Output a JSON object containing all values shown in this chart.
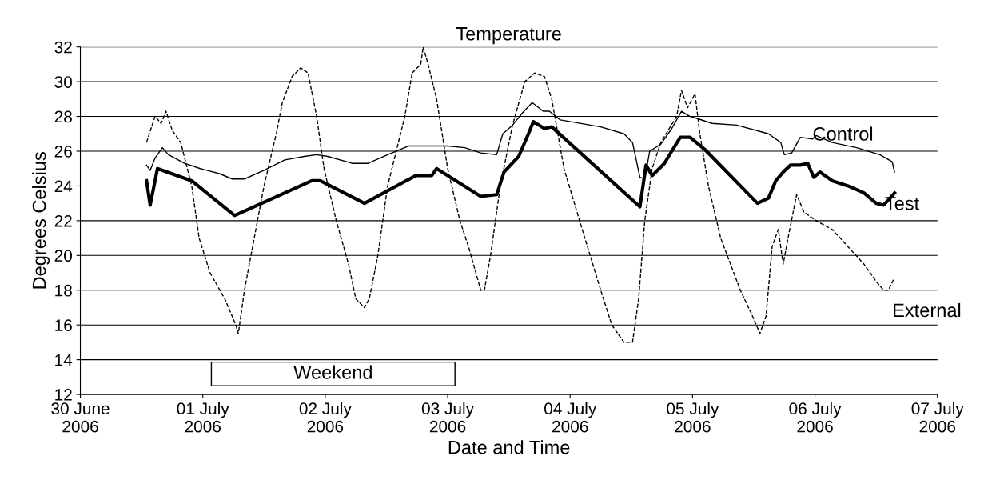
{
  "chart_data": {
    "type": "line",
    "title": "Temperature",
    "xlabel": "Date and Time",
    "ylabel": "Degrees Celsius",
    "xlim": [
      "2006-06-30",
      "2006-07-07"
    ],
    "ylim": [
      12,
      32
    ],
    "xticks": [
      {
        "value": "2006-06-30",
        "label": "30 June\n2006"
      },
      {
        "value": "2006-07-01",
        "label": "01 July\n2006"
      },
      {
        "value": "2006-07-02",
        "label": "02 July\n2006"
      },
      {
        "value": "2006-07-03",
        "label": "03 July\n2006"
      },
      {
        "value": "2006-07-04",
        "label": "04 July\n2006"
      },
      {
        "value": "2006-07-05",
        "label": "05 July\n2006"
      },
      {
        "value": "2006-07-06",
        "label": "06 July\n2006"
      },
      {
        "value": "2006-07-07",
        "label": "07 July\n2006"
      }
    ],
    "yticks": [
      12,
      14,
      16,
      18,
      20,
      22,
      24,
      26,
      28,
      30,
      32
    ],
    "grid": "y",
    "legend": false,
    "marker": "none",
    "bands": [
      {
        "axis": "x",
        "from": "2006-07-01T01:41",
        "to": "2006-07-03T01:26",
        "label": "Weekend",
        "color": "#ffffff"
      }
    ],
    "series": [
      {
        "name": "Control",
        "color": "#000000",
        "line_style": "solid",
        "x": [
          "2006-06-30T12:58",
          "2006-06-30T13:41",
          "2006-06-30T14:38",
          "2006-06-30T16:05",
          "2006-06-30T17:17",
          "2006-06-30T20:24",
          "2006-06-30T23:31",
          "2006-07-01T03:22",
          "2006-07-01T05:46",
          "2006-07-01T08:10",
          "2006-07-01T12:00",
          "2006-07-01T16:05",
          "2006-07-01T19:55",
          "2006-07-01T22:19",
          "2006-07-02T00:29",
          "2006-07-02T05:17",
          "2006-07-02T08:24",
          "2006-07-02T12:14",
          "2006-07-02T16:19",
          "2006-07-03T00:00",
          "2006-07-03T03:22",
          "2006-07-03T06:29",
          "2006-07-03T09:36",
          "2006-07-03T10:48",
          "2006-07-03T12:43",
          "2006-07-03T14:38",
          "2006-07-03T16:34",
          "2006-07-03T18:43",
          "2006-07-03T19:55",
          "2006-07-03T22:05",
          "2006-07-04T06:00",
          "2006-07-04T10:34",
          "2006-07-04T12:14",
          "2006-07-04T13:41",
          "2006-07-04T14:38",
          "2006-07-04T15:36",
          "2006-07-04T17:46",
          "2006-07-04T19:55",
          "2006-07-04T21:50",
          "2006-07-04T23:31",
          "2006-07-05T00:43",
          "2006-07-05T03:50",
          "2006-07-05T08:38",
          "2006-07-05T14:53",
          "2006-07-05T17:17",
          "2006-07-05T18:00",
          "2006-07-05T19:26",
          "2006-07-05T21:07",
          "2006-07-05T23:31",
          "2006-07-06T00:14",
          "2006-07-06T03:22",
          "2006-07-06T08:10",
          "2006-07-06T12:43",
          "2006-07-06T15:07",
          "2006-07-06T15:36"
        ],
        "values": [
          25.2,
          24.9,
          25.6,
          26.2,
          25.8,
          25.3,
          25.0,
          24.7,
          24.4,
          24.4,
          24.9,
          25.5,
          25.7,
          25.8,
          25.7,
          25.3,
          25.3,
          25.8,
          26.3,
          26.3,
          26.2,
          25.9,
          25.8,
          27.0,
          27.5,
          28.2,
          28.8,
          28.3,
          28.3,
          27.8,
          27.4,
          27.0,
          26.5,
          24.5,
          24.4,
          26.0,
          26.4,
          27.3,
          28.3,
          28.0,
          27.9,
          27.6,
          27.5,
          27.0,
          26.5,
          25.8,
          25.9,
          26.8,
          26.7,
          26.9,
          26.5,
          26.2,
          25.8,
          25.4,
          24.8
        ]
      },
      {
        "name": "Test",
        "color": "#000000",
        "line_style": "solid",
        "x": [
          "2006-06-30T12:58",
          "2006-06-30T13:41",
          "2006-06-30T15:07",
          "2006-06-30T21:50",
          "2006-07-01T06:14",
          "2006-07-01T21:22",
          "2006-07-01T23:02",
          "2006-07-02T07:41",
          "2006-07-02T17:46",
          "2006-07-02T20:53",
          "2006-07-02T21:50",
          "2006-07-03T06:29",
          "2006-07-03T09:36",
          "2006-07-03T11:02",
          "2006-07-03T13:55",
          "2006-07-03T15:50",
          "2006-07-03T16:48",
          "2006-07-03T18:58",
          "2006-07-03T20:24",
          "2006-07-04T13:41",
          "2006-07-04T14:53",
          "2006-07-04T16:05",
          "2006-07-04T18:29",
          "2006-07-04T19:55",
          "2006-07-04T21:36",
          "2006-07-04T23:31",
          "2006-07-05T02:24",
          "2006-07-05T12:43",
          "2006-07-05T14:53",
          "2006-07-05T16:19",
          "2006-07-05T17:46",
          "2006-07-05T19:12",
          "2006-07-05T21:07",
          "2006-07-05T22:34",
          "2006-07-05T23:46",
          "2006-07-06T00:58",
          "2006-07-06T03:22",
          "2006-07-06T06:29",
          "2006-07-06T09:36",
          "2006-07-06T12:00",
          "2006-07-06T13:26",
          "2006-07-06T14:24",
          "2006-07-06T15:36"
        ],
        "values": [
          24.3,
          22.9,
          25.0,
          24.3,
          22.3,
          24.3,
          24.3,
          23.0,
          24.6,
          24.6,
          25.0,
          23.4,
          23.5,
          24.8,
          25.7,
          27.0,
          27.7,
          27.3,
          27.4,
          22.8,
          25.2,
          24.6,
          25.3,
          26.0,
          26.8,
          26.8,
          26.1,
          23.0,
          23.3,
          24.3,
          24.8,
          25.2,
          25.2,
          25.3,
          24.5,
          24.8,
          24.3,
          24.0,
          23.6,
          23.0,
          22.9,
          23.2,
          23.6
        ]
      },
      {
        "name": "External",
        "color": "#000000",
        "line_style": "dashed",
        "x": [
          "2006-06-30T12:58",
          "2006-06-30T14:38",
          "2006-06-30T15:50",
          "2006-06-30T16:48",
          "2006-06-30T18:00",
          "2006-06-30T19:41",
          "2006-06-30T21:50",
          "2006-06-30T23:17",
          "2006-07-01T01:26",
          "2006-07-01T04:19",
          "2006-07-01T06:29",
          "2006-07-01T06:58",
          "2006-07-01T08:10",
          "2006-07-01T10:05",
          "2006-07-01T12:00",
          "2006-07-01T14:24",
          "2006-07-01T15:36",
          "2006-07-01T17:31",
          "2006-07-01T19:12",
          "2006-07-01T20:38",
          "2006-07-01T22:19",
          "2006-07-01T23:46",
          "2006-07-02T02:10",
          "2006-07-02T04:34",
          "2006-07-02T06:00",
          "2006-07-02T07:41",
          "2006-07-02T08:38",
          "2006-07-02T10:19",
          "2006-07-02T12:14",
          "2006-07-02T15:36",
          "2006-07-02T17:02",
          "2006-07-02T18:43",
          "2006-07-02T19:12",
          "2006-07-02T20:10",
          "2006-07-02T21:50",
          "2006-07-03T00:00",
          "2006-07-03T02:24",
          "2006-07-03T04:05",
          "2006-07-03T06:29",
          "2006-07-03T07:12",
          "2006-07-03T08:24",
          "2006-07-03T10:19",
          "2006-07-03T12:43",
          "2006-07-03T15:07",
          "2006-07-03T17:02",
          "2006-07-03T18:58",
          "2006-07-03T20:24",
          "2006-07-03T22:48",
          "2006-07-04T02:53",
          "2006-07-04T06:00",
          "2006-07-04T08:10",
          "2006-07-04T10:34",
          "2006-07-04T12:14",
          "2006-07-04T13:26",
          "2006-07-04T14:38",
          "2006-07-04T16:05",
          "2006-07-04T17:46",
          "2006-07-04T20:53",
          "2006-07-04T21:50",
          "2006-07-04T23:02",
          "2006-07-05T00:29",
          "2006-07-05T01:26",
          "2006-07-05T03:07",
          "2006-07-05T05:31",
          "2006-07-05T09:22",
          "2006-07-05T11:46",
          "2006-07-05T13:12",
          "2006-07-05T14:24",
          "2006-07-05T15:36",
          "2006-07-05T16:48",
          "2006-07-05T17:46",
          "2006-07-05T18:43",
          "2006-07-05T20:24",
          "2006-07-05T21:50",
          "2006-07-06T00:14",
          "2006-07-06T03:22",
          "2006-07-06T06:29",
          "2006-07-06T09:36",
          "2006-07-06T12:00",
          "2006-07-06T13:26",
          "2006-07-06T14:24",
          "2006-07-06T15:22"
        ],
        "values": [
          26.5,
          28.0,
          27.6,
          28.3,
          27.2,
          26.5,
          24.0,
          21.0,
          19.0,
          17.5,
          16.0,
          15.5,
          18.0,
          21.0,
          24.0,
          27.0,
          28.8,
          30.3,
          30.8,
          30.5,
          28.0,
          25.0,
          22.0,
          19.5,
          17.5,
          17.0,
          17.5,
          20.0,
          24.0,
          28.0,
          30.5,
          31.0,
          32.0,
          31.0,
          29.0,
          25.0,
          22.0,
          20.5,
          18.0,
          18.0,
          20.0,
          24.0,
          27.5,
          30.0,
          30.5,
          30.3,
          29.0,
          25.0,
          21.0,
          18.0,
          16.0,
          15.0,
          15.0,
          17.5,
          22.0,
          25.0,
          26.5,
          28.0,
          29.5,
          28.5,
          29.3,
          27.0,
          24.0,
          21.0,
          18.0,
          16.5,
          15.5,
          16.5,
          20.5,
          21.5,
          19.5,
          21.0,
          23.5,
          22.5,
          22.0,
          21.5,
          20.5,
          19.5,
          18.5,
          18.0,
          18.0,
          18.6
        ]
      }
    ]
  }
}
